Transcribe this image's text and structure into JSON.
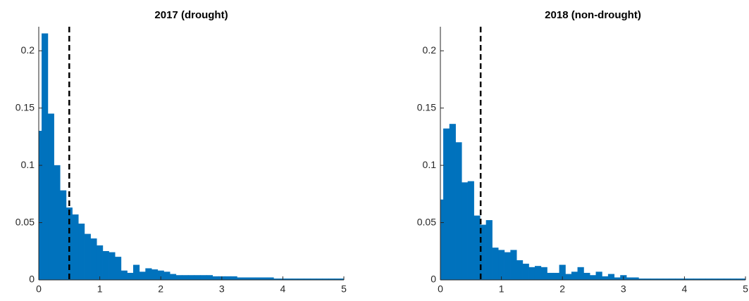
{
  "chart_data": [
    {
      "type": "histogram",
      "title": "2017 (drought)",
      "color": "#0072BD",
      "bins": [
        0,
        0.05,
        0.15,
        0.25,
        0.35,
        0.45,
        0.55,
        0.65,
        0.75,
        0.85,
        0.95,
        1.05,
        1.15,
        1.25,
        1.35,
        1.45,
        1.55,
        1.65,
        1.75,
        1.85,
        1.95,
        2.05,
        2.15,
        2.25,
        2.35,
        2.45,
        2.55,
        2.65,
        2.75,
        2.85,
        2.95,
        3.05,
        3.15,
        3.25,
        3.35,
        3.45,
        3.55,
        3.65,
        3.75,
        3.85,
        3.95,
        4.05,
        4.15,
        4.25,
        4.35,
        4.45,
        4.55,
        4.65,
        4.75,
        4.85,
        4.95,
        5
      ],
      "values": [
        0.13,
        0.215,
        0.145,
        0.1,
        0.078,
        0.063,
        0.057,
        0.049,
        0.04,
        0.036,
        0.03,
        0.025,
        0.024,
        0.02,
        0.008,
        0.006,
        0.013,
        0.007,
        0.01,
        0.009,
        0.008,
        0.007,
        0.005,
        0.004,
        0.004,
        0.004,
        0.004,
        0.004,
        0.004,
        0.003,
        0.003,
        0.003,
        0.003,
        0.002,
        0.002,
        0.002,
        0.002,
        0.002,
        0.002,
        0.001,
        0.001,
        0.001,
        0.001,
        0.001,
        0.001,
        0.001,
        0.001,
        0.001,
        0.001,
        0.001,
        0.001
      ],
      "vline": 0.5,
      "xlim": [
        0,
        5
      ],
      "xticks": [
        0,
        1,
        2,
        3,
        4,
        5
      ],
      "ylim": [
        0,
        0.221
      ],
      "yticks": [
        0,
        0.05,
        0.1,
        0.15,
        0.2
      ]
    },
    {
      "type": "histogram",
      "title": "2018 (non-drought)",
      "color": "#0072BD",
      "bins": [
        0,
        0.05,
        0.15,
        0.25,
        0.35,
        0.45,
        0.55,
        0.65,
        0.75,
        0.85,
        0.95,
        1.05,
        1.15,
        1.25,
        1.35,
        1.45,
        1.55,
        1.65,
        1.75,
        1.85,
        1.95,
        2.05,
        2.15,
        2.25,
        2.35,
        2.45,
        2.55,
        2.65,
        2.75,
        2.85,
        2.95,
        3.05,
        3.15,
        3.25,
        3.35,
        3.45,
        3.55,
        3.65,
        3.75,
        3.85,
        3.95,
        4.05,
        4.15,
        4.25,
        4.35,
        4.45,
        4.55,
        4.65,
        4.75,
        4.85,
        4.95,
        5
      ],
      "values": [
        0.07,
        0.132,
        0.136,
        0.12,
        0.085,
        0.086,
        0.056,
        0.048,
        0.052,
        0.028,
        0.026,
        0.024,
        0.026,
        0.017,
        0.014,
        0.011,
        0.012,
        0.011,
        0.006,
        0.006,
        0.013,
        0.005,
        0.007,
        0.011,
        0.006,
        0.004,
        0.007,
        0.003,
        0.005,
        0.002,
        0.004,
        0.002,
        0.002,
        0.001,
        0.001,
        0.001,
        0.001,
        0.001,
        0.001,
        0.001,
        0.001,
        0.001,
        0.001,
        0.001,
        0.001,
        0.001,
        0.001,
        0.001,
        0.001,
        0.001,
        0.001
      ],
      "vline": 0.66,
      "xlim": [
        0,
        5
      ],
      "xticks": [
        0,
        1,
        2,
        3,
        4,
        5
      ],
      "ylim": [
        0,
        0.221
      ],
      "yticks": [
        0,
        0.05,
        0.1,
        0.15,
        0.2
      ]
    }
  ]
}
